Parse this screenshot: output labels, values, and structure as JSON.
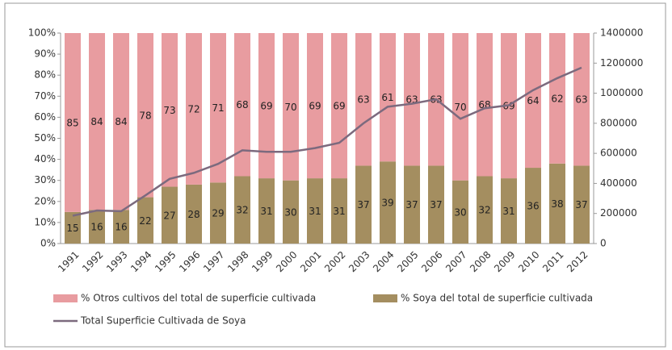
{
  "chart_data": {
    "type": "bar",
    "stacked": true,
    "categories": [
      "1991",
      "1992",
      "1993",
      "1994",
      "1995",
      "1996",
      "1997",
      "1998",
      "1999",
      "2000",
      "2001",
      "2002",
      "2003",
      "2004",
      "2005",
      "2006",
      "2007",
      "2008",
      "2009",
      "2010",
      "2011",
      "2012"
    ],
    "series": [
      {
        "name": "% Otros cultivos del total de superficie cultivada",
        "color": "#e89ca0",
        "values": [
          85,
          84,
          84,
          78,
          73,
          72,
          71,
          68,
          69,
          70,
          69,
          69,
          63,
          61,
          63,
          63,
          70,
          68,
          69,
          64,
          62,
          63
        ]
      },
      {
        "name": "% Soya del total de superficie cultivada",
        "color": "#a48e60",
        "values": [
          15,
          16,
          16,
          22,
          27,
          28,
          29,
          32,
          31,
          30,
          31,
          31,
          37,
          39,
          37,
          37,
          30,
          32,
          31,
          36,
          38,
          37
        ]
      },
      {
        "name": "Total Superficie Cultivada de Soya",
        "color": "#7c6a7e",
        "axis": "y2",
        "values": [
          185000,
          220000,
          215000,
          320000,
          430000,
          470000,
          530000,
          620000,
          610000,
          610000,
          635000,
          670000,
          800000,
          910000,
          930000,
          960000,
          830000,
          900000,
          920000,
          1020000,
          1100000,
          1170000
        ]
      }
    ],
    "ylim": [
      0,
      100
    ],
    "yticks": [
      {
        "value": 0,
        "label": "0%"
      },
      {
        "value": 10,
        "label": "10%"
      },
      {
        "value": 20,
        "label": "20%"
      },
      {
        "value": 30,
        "label": "30%"
      },
      {
        "value": 40,
        "label": "40%"
      },
      {
        "value": 50,
        "label": "50%"
      },
      {
        "value": 60,
        "label": "60%"
      },
      {
        "value": 70,
        "label": "70%"
      },
      {
        "value": 80,
        "label": "80%"
      },
      {
        "value": 90,
        "label": "90%"
      },
      {
        "value": 100,
        "label": "100%"
      }
    ],
    "y2lim": [
      0,
      1400000
    ],
    "y2ticks": [
      0,
      200000,
      400000,
      600000,
      800000,
      1000000,
      1200000,
      1400000
    ]
  }
}
